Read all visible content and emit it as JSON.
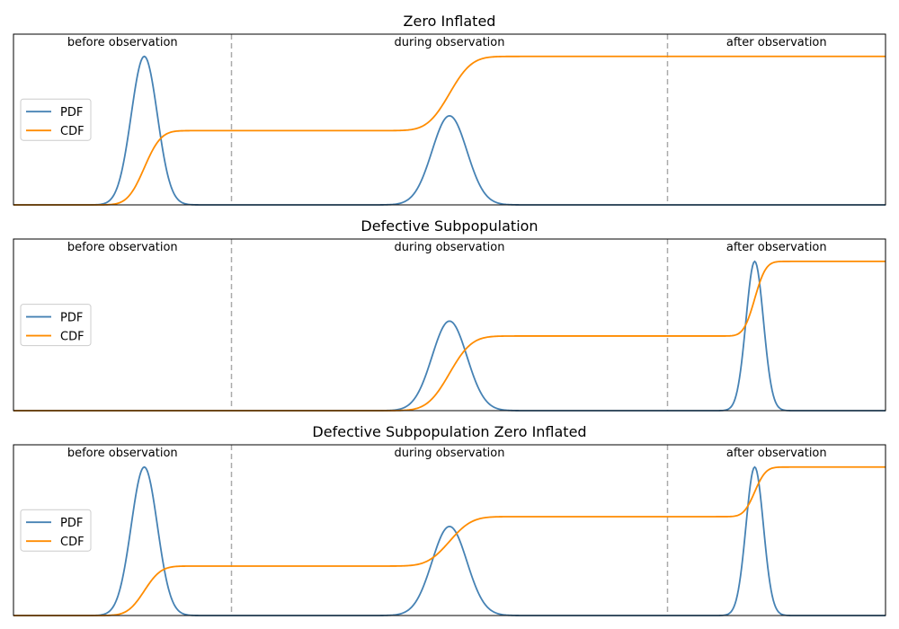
{
  "chart_data": [
    {
      "type": "line",
      "title": "Zero Inflated",
      "xlim": [
        0,
        1
      ],
      "ylim": [
        0,
        1.15
      ],
      "boundaries": [
        0.25,
        0.75
      ],
      "region_labels": [
        {
          "text": "before observation",
          "x": 0.125
        },
        {
          "text": "during observation",
          "x": 0.5
        },
        {
          "text": "after observation",
          "x": 0.875
        }
      ],
      "legend": {
        "placement": "center-left",
        "entries": [
          "PDF",
          "CDF"
        ]
      },
      "series": [
        {
          "name": "PDF",
          "color": "#4682b4",
          "components": [
            {
              "center": 0.15,
              "sigma": 0.015,
              "peak": 1.0
            },
            {
              "center": 0.5,
              "sigma": 0.02,
              "peak": 0.6
            }
          ]
        },
        {
          "name": "CDF",
          "color": "#ff8c00",
          "components": [
            {
              "center": 0.15,
              "sigma": 0.015,
              "weight": 0.5
            },
            {
              "center": 0.5,
              "sigma": 0.02,
              "weight": 0.5
            }
          ]
        }
      ]
    },
    {
      "type": "line",
      "title": "Defective Subpopulation",
      "xlim": [
        0,
        1
      ],
      "ylim": [
        0,
        1.15
      ],
      "boundaries": [
        0.25,
        0.75
      ],
      "region_labels": [
        {
          "text": "before observation",
          "x": 0.125
        },
        {
          "text": "during observation",
          "x": 0.5
        },
        {
          "text": "after observation",
          "x": 0.875
        }
      ],
      "legend": {
        "placement": "center-left",
        "entries": [
          "PDF",
          "CDF"
        ]
      },
      "series": [
        {
          "name": "PDF",
          "color": "#4682b4",
          "components": [
            {
              "center": 0.5,
              "sigma": 0.02,
              "peak": 0.6
            },
            {
              "center": 0.85,
              "sigma": 0.01,
              "peak": 1.0
            }
          ]
        },
        {
          "name": "CDF",
          "color": "#ff8c00",
          "components": [
            {
              "center": 0.5,
              "sigma": 0.02,
              "weight": 0.5
            },
            {
              "center": 0.85,
              "sigma": 0.01,
              "weight": 0.5
            }
          ]
        }
      ]
    },
    {
      "type": "line",
      "title": "Defective Subpopulation Zero Inflated",
      "xlim": [
        0,
        1
      ],
      "ylim": [
        0,
        1.15
      ],
      "boundaries": [
        0.25,
        0.75
      ],
      "region_labels": [
        {
          "text": "before observation",
          "x": 0.125
        },
        {
          "text": "during observation",
          "x": 0.5
        },
        {
          "text": "after observation",
          "x": 0.875
        }
      ],
      "legend": {
        "placement": "center-left",
        "entries": [
          "PDF",
          "CDF"
        ]
      },
      "series": [
        {
          "name": "PDF",
          "color": "#4682b4",
          "components": [
            {
              "center": 0.15,
              "sigma": 0.015,
              "peak": 1.0
            },
            {
              "center": 0.5,
              "sigma": 0.02,
              "peak": 0.6
            },
            {
              "center": 0.85,
              "sigma": 0.01,
              "peak": 1.0
            }
          ]
        },
        {
          "name": "CDF",
          "color": "#ff8c00",
          "components": [
            {
              "center": 0.15,
              "sigma": 0.015,
              "weight": 0.333
            },
            {
              "center": 0.5,
              "sigma": 0.02,
              "weight": 0.333
            },
            {
              "center": 0.85,
              "sigma": 0.01,
              "weight": 0.334
            }
          ]
        }
      ]
    }
  ]
}
